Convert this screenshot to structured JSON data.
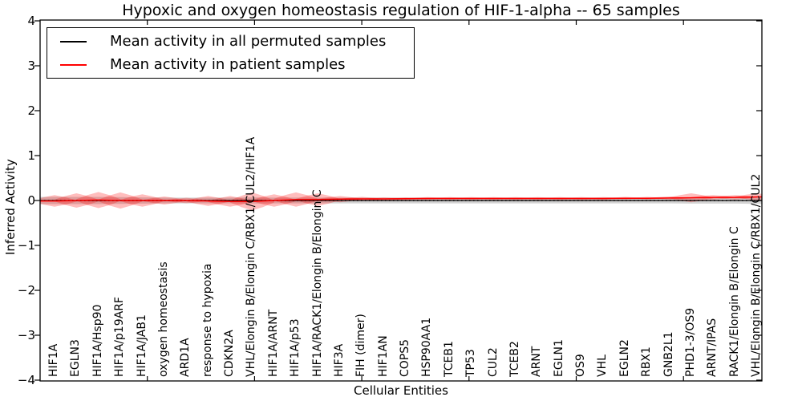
{
  "title": "Hypoxic and oxygen homeostasis regulation of HIF-1-alpha -- 65 samples",
  "legend": {
    "items": [
      {
        "label": "Mean activity in all permuted samples",
        "color": "#000000"
      },
      {
        "label": "Mean activity in patient samples",
        "color": "#ff0000"
      }
    ]
  },
  "chart_data": {
    "type": "violin",
    "title": "Hypoxic and oxygen homeostasis regulation of HIF-1-alpha -- 65 samples",
    "xlabel": "Cellular Entities",
    "ylabel": "Inferred Activity",
    "ylim": [
      -4,
      4
    ],
    "yticks": [
      4,
      3,
      2,
      1,
      0,
      -1,
      -2,
      -3,
      -4
    ],
    "grid": false,
    "legend_position": "upper left",
    "zero_line_style": "dotted",
    "categories": [
      "HIF1A",
      "EGLN3",
      "HIF1A/Hsp90",
      "HIF1A/p19ARF",
      "HIF1A/JAB1",
      "oxygen homeostasis",
      "ARD1A",
      "response to hypoxia",
      "CDKN2A",
      "VHL/Elongin B/Elongin C/RBX1/CUL2/HIF1A",
      "HIF1A/ARNT",
      "HIF1A/p53",
      "HIF1A/RACK1/Elongin B/Elongin C",
      "HIF3A",
      "FIH (dimer)",
      "HIF1AN",
      "COPS5",
      "HSP90AA1",
      "TCEB1",
      "TP53",
      "CUL2",
      "TCEB2",
      "ARNT",
      "EGLN1",
      "OS9",
      "VHL",
      "EGLN2",
      "RBX1",
      "GNB2L1",
      "PHD1-3/OS9",
      "ARNT/IPAS",
      "RACK1/Elongin B/Elongin C",
      "VHL/Elongin B/Elongin C/RBX1/CUL2"
    ],
    "series": [
      {
        "name": "Mean activity in all permuted samples",
        "color": "#000000",
        "style": "solid",
        "values": [
          0,
          0,
          0,
          0,
          0,
          0,
          0,
          0,
          0,
          0,
          0,
          0,
          0,
          0,
          0,
          0,
          0,
          0,
          0,
          0,
          0,
          0,
          0,
          0,
          0,
          0,
          0,
          0,
          0,
          0,
          0,
          0,
          0
        ]
      },
      {
        "name": "Mean activity in patient samples",
        "color": "#ff0000",
        "style": "solid",
        "values": [
          -0.01,
          0,
          0.01,
          0,
          0,
          0,
          0,
          -0.01,
          -0.02,
          -0.02,
          0,
          0.02,
          0.02,
          0.03,
          0.035,
          0.035,
          0.04,
          0.045,
          0.045,
          0.045,
          0.045,
          0.045,
          0.045,
          0.045,
          0.045,
          0.045,
          0.05,
          0.05,
          0.055,
          0.06,
          0.07,
          0.07,
          0.08
        ]
      }
    ],
    "patient_violin_halfwidths": [
      0.13,
      0.16,
      0.18,
      0.18,
      0.14,
      0.09,
      0.06,
      0.11,
      0.12,
      0.2,
      0.14,
      0.16,
      0.14,
      0.07,
      0.045,
      0.035,
      0.03,
      0.03,
      0.03,
      0.03,
      0.03,
      0.03,
      0.03,
      0.03,
      0.03,
      0.03,
      0.03,
      0.03,
      0.035,
      0.1,
      0.05,
      0.05,
      0.08
    ],
    "permuted_violin_halfwidths": [
      0.08,
      0.08,
      0.08,
      0.075,
      0.07,
      0.065,
      0.065,
      0.065,
      0.065,
      0.07,
      0.065,
      0.065,
      0.065,
      0.065,
      0.065,
      0.065,
      0.065,
      0.065,
      0.065,
      0.065,
      0.065,
      0.065,
      0.065,
      0.065,
      0.065,
      0.065,
      0.065,
      0.065,
      0.065,
      0.07,
      0.07,
      0.07,
      0.075
    ],
    "colors": {
      "patient_fill": "rgba(255,0,0,0.26)",
      "permuted_fill": "#d4d4d4",
      "patient_line": "#ff0000",
      "permuted_line": "#000000",
      "zero_line": "#000000"
    }
  }
}
